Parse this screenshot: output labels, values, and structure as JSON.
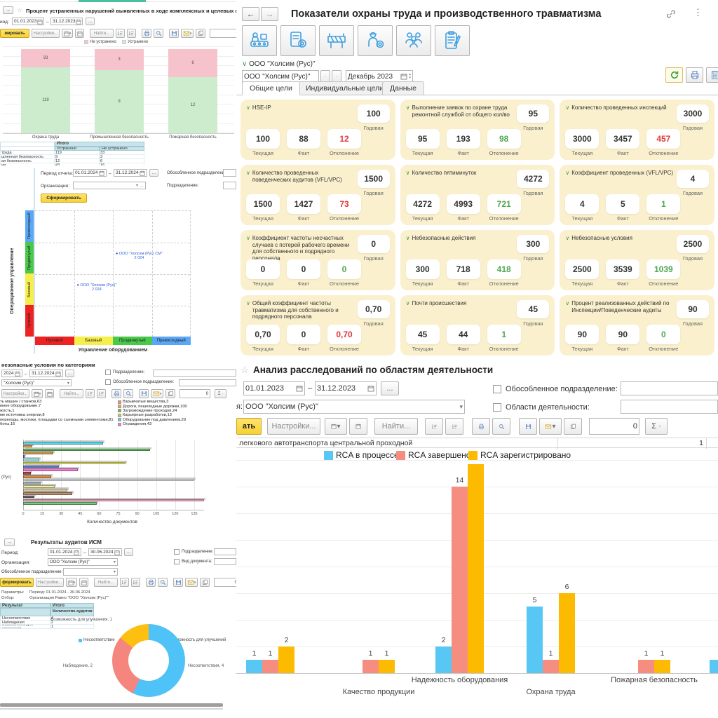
{
  "panelA": {
    "title": "Процент устраненных нарушений выявленных в ходе комплексных и целевых проверок",
    "period_label": "иод:",
    "date_from": "01.01.2023",
    "date_to": "31.12.2023",
    "btn_generate": "мировать",
    "btn_settings": "Настройки...",
    "btn_find": "Найти...",
    "counter": "0",
    "sum_label": "Σ",
    "table": {
      "group_header": "Итого",
      "columns": [
        "Устранено",
        "Не устранено"
      ],
      "rows": [
        {
          "label": "труда",
          "fixed": "119",
          "not_fixed": "33"
        },
        {
          "label": "шленная безопасность",
          "fixed": "9",
          "not_fixed": "3"
        },
        {
          "label": "ая безопасность",
          "fixed": "12",
          "not_fixed": "6"
        },
        {
          "label": "ия",
          "fixed": "43",
          "not_fixed": "16"
        }
      ]
    }
  },
  "panelB": {
    "period_label": "Период отчета:",
    "date_from": "01.01.2024",
    "date_to": "31.12.2024",
    "org_label": "Организация:",
    "sep_div_label": "Обособленное подразделение:",
    "div_label": "Подразделение:",
    "btn_generate": "Сформировать"
  },
  "panelC": {
    "title": "незопасные условия  по категориям",
    "date_from": "2024",
    "date_to": "31.12.2024",
    "org_value": "\"Холсим (Рус)\"",
    "cb_division": "Подразделение:",
    "cb_sep_division": "Обособленное подразделение:",
    "btn_settings": "Настройки...",
    "btn_find": "Найти...",
    "counter": "0",
    "sum_label": "Σ"
  },
  "panelD": {
    "title": "Результаты аудитов ИСМ",
    "period_label": "Период:",
    "date_from": "01.01.2024",
    "date_to": "30.06.2024",
    "org_label": "Организация:",
    "org_value": "ООО \"Холсим (Рус)\"",
    "sep_div_label": "Обособленное подразделение:",
    "cb_division": "Подразделение:",
    "cb_doctype": "Вид документа:",
    "btn_generate": "формировать",
    "btn_settings": "Настройки...",
    "btn_find": "Найти...",
    "counter": "0",
    "sum_label": "Σ",
    "params_label": "Параметры:",
    "params_value": "Период: 01.01.2024 - 30.06.2024",
    "filter_label": "Отбор:",
    "filter_value": "Организация Равно \"ООО \"Холсим (Рус)\"\"",
    "table": {
      "col_result": "Результат",
      "col_total": "Итого",
      "col_total_sub": "Количество аудитов",
      "rows": [
        {
          "label": "Несоответствия",
          "value": "4"
        },
        {
          "label": "Наблюдения",
          "value": "2"
        },
        {
          "label": "Возможность для улучшения",
          "value": "1"
        }
      ]
    }
  },
  "panelE": {
    "title": "Показатели охраны труда и производственного травматизма",
    "breadcrumb": "ООО \"Холсим (Рус)\"",
    "org_value": "ООО \"Холсим (Рус)\"",
    "period_value": "Декабрь 2023",
    "tabs": [
      "Общие цели",
      "Индивидуальные цели",
      "Данные"
    ],
    "active_tab": "Общие цели",
    "labels": {
      "current": "Текущая",
      "fact": "Факт",
      "deviation": "Отклонение",
      "annual": "Годовая"
    },
    "icons": [
      "worker-machine-icon",
      "document-gear-icon",
      "barrier-icon",
      "worker-gear-icon",
      "people-icon",
      "clipboard-pen-icon"
    ],
    "cards": [
      {
        "title": "HSE-IP",
        "current": "100",
        "fact": "88",
        "deviation": "12",
        "deviation_status": "red",
        "annual": "100"
      },
      {
        "title": "Выполнение заявок по охране труда ремонтной службой от общего кол/во",
        "current": "95",
        "fact": "193",
        "deviation": "98",
        "deviation_status": "green",
        "annual": "95"
      },
      {
        "title": "Количество проведенных инспекций",
        "current": "3000",
        "fact": "3457",
        "deviation": "457",
        "deviation_status": "red",
        "annual": "3000"
      },
      {
        "title": "Количество проведенных поведенческих аудитов (VFL/VPC)",
        "current": "1500",
        "fact": "1427",
        "deviation": "73",
        "deviation_status": "red",
        "annual": "1500"
      },
      {
        "title": "Количество пятиминуток",
        "current": "4272",
        "fact": "4993",
        "deviation": "721",
        "deviation_status": "green",
        "annual": "4272"
      },
      {
        "title": "Коэффициент проведенных (VFL/VPC)",
        "current": "4",
        "fact": "5",
        "deviation": "1",
        "deviation_status": "green",
        "annual": "4"
      },
      {
        "title": "Коэффициент частоты несчастных случаев с потерей рабочего времени для собственного и подрядного персонала",
        "current": "0",
        "fact": "0",
        "deviation": "0",
        "deviation_status": "green",
        "annual": "0"
      },
      {
        "title": "Небезопасные действия",
        "current": "300",
        "fact": "718",
        "deviation": "418",
        "deviation_status": "green",
        "annual": "300"
      },
      {
        "title": "Небезопасные условия",
        "current": "2500",
        "fact": "3539",
        "deviation": "1039",
        "deviation_status": "green",
        "annual": "2500"
      },
      {
        "title": "Общий коэффициент частоты травматизма для собственного и подрядного персонала",
        "current": "0,70",
        "fact": "0",
        "deviation": "0,70",
        "deviation_status": "red",
        "annual": "0,70"
      },
      {
        "title": "Почти происшествия",
        "current": "45",
        "fact": "44",
        "deviation": "1",
        "deviation_status": "green",
        "annual": "45"
      },
      {
        "title": "Процент реализованных действий по Инспекции/Поведенческие аудиты",
        "current": "90",
        "fact": "90",
        "deviation": "0",
        "deviation_status": "green",
        "annual": "90"
      }
    ]
  },
  "panelF": {
    "title": "Анализ расследований по областям деятельности",
    "date_from": "01.01.2023",
    "date_to": "31.12.2023",
    "org_label": "я:",
    "org_value": "ООО \"Холсим (Рус)\"",
    "cb_sep_division": "Обособленное подразделение:",
    "cb_areas": "Области деятельности:",
    "btn_generate": "ать",
    "btn_settings": "Настройки...",
    "btn_find": "Найти...",
    "counter": "0",
    "sum_label": "Σ",
    "table_row": {
      "text": "легкового автотранспорта центральной проходной",
      "v1": "1",
      "v2": "1"
    }
  },
  "chart_data": [
    {
      "id": "eliminated-violations",
      "type": "bar",
      "subtype": "stacked-percent",
      "categories": [
        "Охрана труда",
        "Промышленная безопасность",
        "Пожарная безопасность"
      ],
      "series": [
        {
          "name": "Не устранено",
          "color": "#f6c3cd",
          "values": [
            33,
            3,
            6
          ]
        },
        {
          "name": "Устранено",
          "color": "#cdeccd",
          "values": [
            119,
            9,
            12
          ]
        }
      ],
      "legend_position": "top",
      "grid": true
    },
    {
      "id": "maturity-matrix",
      "type": "scatter",
      "xlabel": "Управление оборудованием",
      "ylabel": "Операционное управление",
      "bands": [
        {
          "label": "Нулевой",
          "color": "#ee2222"
        },
        {
          "label": "Базовый",
          "color": "#f6ee4a"
        },
        {
          "label": "Продвинутый",
          "color": "#49c949"
        },
        {
          "label": "Превосходный",
          "color": "#5aa7f8"
        }
      ],
      "points": [
        {
          "label": "ООО \"Холсим (Рус) СМ\"",
          "value": "2 024",
          "x": "Продвинутый",
          "y": "Продвинутый"
        },
        {
          "label": "ООО \"Холсим (Рус)\"",
          "value": "2 024",
          "x": "Базовый",
          "y": "Базовый"
        }
      ]
    },
    {
      "id": "unsafe-conditions-by-category",
      "type": "bar",
      "orientation": "horizontal",
      "category_label": "(Рус)",
      "xlabel": "Количество документов",
      "x_ticks": [
        0,
        15,
        30,
        45,
        60,
        75,
        90,
        105,
        120,
        135
      ],
      "legend_left": [
        {
          "label": "ть машин / станков,63"
        },
        {
          "label": "мное оборудование,7"
        },
        {
          "label": "жость,1"
        },
        {
          "label": "ме источника энергии,8"
        },
        {
          "label": "переходы, мостики, площадки со съемными элементами,81"
        },
        {
          "label": "боты,16"
        }
      ],
      "legend_right": [
        {
          "label": "Взрывчатые вещества,3",
          "color": "#f28b82"
        },
        {
          "label": "Дороги, пешеходные дорожки,100",
          "color": "#f5a623"
        },
        {
          "label": "Загромождение проходов,24",
          "color": "#5cb85c"
        },
        {
          "label": "Карьерные разработки,13",
          "color": "#d6c34a"
        },
        {
          "label": "Оборудование под давлением,29",
          "color": "#57d0e0"
        },
        {
          "label": "Ограждения,43",
          "color": "#f477c8"
        }
      ],
      "bars": [
        {
          "value": 63,
          "color": "#58d6e6"
        },
        {
          "value": 7,
          "color": "#f2a43c"
        },
        {
          "value": 100,
          "color": "#67c96a"
        },
        {
          "value": 24,
          "color": "#c59a52"
        },
        {
          "value": 1,
          "color": "#8e5bc0"
        },
        {
          "value": 13,
          "color": "#93e4ee"
        },
        {
          "value": 81,
          "color": "#eef06a"
        },
        {
          "value": 28,
          "color": "#5e7bd0"
        },
        {
          "value": 43,
          "color": "#ee7ad2"
        },
        {
          "value": 6,
          "color": "#a84a46"
        },
        {
          "value": 22,
          "color": "#e08a44"
        },
        {
          "value": 135,
          "color": "#e9eff2"
        },
        {
          "value": 14,
          "color": "#9fb0ba"
        },
        {
          "value": 25,
          "color": "#f4f0a4"
        },
        {
          "value": 35,
          "color": "#d9c9a2"
        },
        {
          "value": 39,
          "color": "#bb8f70"
        },
        {
          "value": 9,
          "color": "#707070"
        },
        {
          "value": 143,
          "color": "#f2a6bc"
        },
        {
          "value": 58,
          "color": "#7ccb80"
        }
      ]
    },
    {
      "id": "ism-audit-results",
      "type": "pie",
      "donut": true,
      "legend": [
        {
          "label": "Несоответствие",
          "color": "#4fc3f7"
        },
        {
          "label": "Наблюдение",
          "color": "#f4867e"
        },
        {
          "label": "Возможность для улучшений",
          "color": "#fdc010"
        }
      ],
      "slices": [
        {
          "label": "Несоответствия, 4",
          "value": 4,
          "color": "#4fc3f7"
        },
        {
          "label": "Наблюдение, 2",
          "value": 2,
          "color": "#f4867e"
        },
        {
          "label": "Возможность для улучшения, 1",
          "value": 1,
          "color": "#fdc010"
        }
      ]
    },
    {
      "id": "rca-by-activity-area",
      "type": "bar",
      "grouping": "grouped",
      "series": [
        {
          "name": "RCA в процессе",
          "color": "#58c7f3"
        },
        {
          "name": "RCA завершено",
          "color": "#f58e80"
        },
        {
          "name": "RCA зарегистрировано",
          "color": "#fcba00"
        }
      ],
      "groups": [
        {
          "label": "",
          "values": [
            1,
            1,
            2
          ]
        },
        {
          "label": "Качество продукции",
          "values": [
            null,
            1,
            1
          ],
          "label_row": "lower"
        },
        {
          "label": "Надежность оборудования",
          "values": [
            2,
            14,
            16
          ],
          "clipped": [
            false,
            false,
            true
          ],
          "label_row": "upper"
        },
        {
          "label": "Охрана труда",
          "values": [
            5,
            1,
            6
          ],
          "label_row": "lower"
        },
        {
          "label": "Пожарная безопасность",
          "values": [
            null,
            1,
            1
          ],
          "label_row": "upper"
        },
        {
          "label": "",
          "values": [
            1,
            null,
            null
          ]
        }
      ],
      "note": "Yellow bar of 'Надежность оборудования' is clipped at plot top; its value label is not visible (estimated 16)."
    }
  ]
}
